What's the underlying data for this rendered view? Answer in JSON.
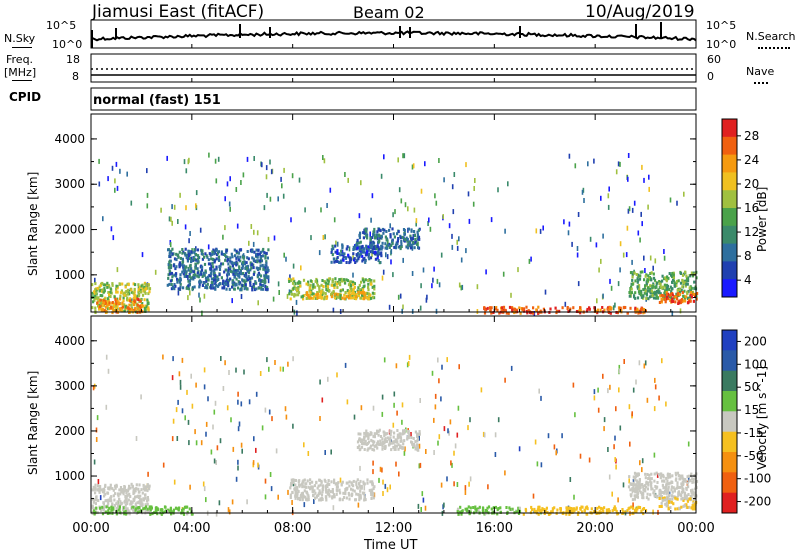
{
  "header": {
    "station": "Jiamusi East (fitACF)",
    "beam": "Beam 02",
    "date": "10/Aug/2019"
  },
  "nsky_panel": {
    "left_label": "N.Sky",
    "right_label": "N.Search",
    "left_ticks": [
      "10^5",
      "10^0"
    ],
    "right_ticks": [
      "10^5",
      "10^0"
    ]
  },
  "freq_panel": {
    "left_label_1": "Freq.",
    "left_label_2": "[MHz]",
    "right_label": "Nave",
    "left_ticks": [
      "18",
      "8"
    ],
    "right_ticks": [
      "60",
      "0"
    ]
  },
  "cpid_panel": {
    "label": "CPID",
    "mode": "normal (fast) 151"
  },
  "colors": {
    "power_scale": [
      "#1a1aff",
      "#2040b0",
      "#2e6f9e",
      "#3a8a6a",
      "#4aa24a",
      "#a0c040",
      "#f0c020",
      "#f59a10",
      "#f06010",
      "#e02020"
    ],
    "velocity_scale": [
      "#2040c0",
      "#2a5aa8",
      "#3a7a60",
      "#66c040",
      "#c8c8c0",
      "#f5c020",
      "#f59010",
      "#f06010",
      "#e02020"
    ]
  },
  "chart_data": [
    {
      "type": "heatmap",
      "title": "",
      "xlabel": "Time UT",
      "ylabel": "Slant Range [km]",
      "colorbar_label": "Power [dB]",
      "colorbar_ticks": [
        "28",
        "24",
        "20",
        "16",
        "12",
        "8",
        "4"
      ],
      "x_ticks": [
        "00:00",
        "04:00",
        "08:00",
        "12:00",
        "16:00",
        "20:00",
        "00:00"
      ],
      "y_ticks": [
        "4000",
        "3000",
        "2000",
        "1000"
      ],
      "xlim": [
        0,
        24
      ],
      "ylim": [
        180,
        4550
      ],
      "cmap_range": [
        0,
        32
      ],
      "patches": [
        {
          "t0": 0.0,
          "t1": 2.3,
          "r0": 200,
          "r1": 850,
          "val": 18
        },
        {
          "t0": 0.2,
          "t1": 2.0,
          "r0": 200,
          "r1": 500,
          "val": 25
        },
        {
          "t0": 7.8,
          "t1": 11.2,
          "r0": 500,
          "r1": 950,
          "val": 17
        },
        {
          "t0": 8.5,
          "t1": 11.0,
          "r0": 500,
          "r1": 650,
          "val": 22
        },
        {
          "t0": 10.5,
          "t1": 13.0,
          "r0": 1600,
          "r1": 2050,
          "val": 8
        },
        {
          "t0": 15.5,
          "t1": 22.0,
          "r0": 180,
          "r1": 320,
          "val": 28
        },
        {
          "t0": 21.3,
          "t1": 24.0,
          "r0": 500,
          "r1": 1100,
          "val": 14
        },
        {
          "t0": 22.5,
          "t1": 24.0,
          "r0": 400,
          "r1": 650,
          "val": 27
        },
        {
          "t0": 3.0,
          "t1": 7.0,
          "r0": 700,
          "r1": 1600,
          "val": 8
        },
        {
          "t0": 9.5,
          "t1": 11.5,
          "r0": 1300,
          "r1": 1700,
          "val": 6
        }
      ]
    },
    {
      "type": "heatmap",
      "title": "",
      "xlabel": "Time UT",
      "ylabel": "Slant Range [km]",
      "colorbar_label": "Velocity [m s^-1]",
      "colorbar_ticks": [
        "200",
        "100",
        "50",
        "15",
        "-15",
        "-50",
        "-100",
        "-200"
      ],
      "x_ticks": [
        "00:00",
        "04:00",
        "08:00",
        "12:00",
        "16:00",
        "20:00",
        "00:00"
      ],
      "y_ticks": [
        "4000",
        "3000",
        "2000",
        "1000"
      ],
      "xlim": [
        0,
        24
      ],
      "ylim": [
        180,
        4550
      ],
      "cmap_range": [
        -250,
        250
      ],
      "patches": [
        {
          "t0": 0.0,
          "t1": 2.3,
          "r0": 200,
          "r1": 850,
          "val": 0
        },
        {
          "t0": 0.0,
          "t1": 4.0,
          "r0": 180,
          "r1": 350,
          "val": 40
        },
        {
          "t0": 7.8,
          "t1": 11.2,
          "r0": 500,
          "r1": 950,
          "val": 0
        },
        {
          "t0": 10.5,
          "t1": 13.0,
          "r0": 1600,
          "r1": 2050,
          "val": 0
        },
        {
          "t0": 14.5,
          "t1": 17.0,
          "r0": 180,
          "r1": 350,
          "val": 40
        },
        {
          "t0": 17.0,
          "t1": 22.0,
          "r0": 180,
          "r1": 350,
          "val": -60
        },
        {
          "t0": 21.3,
          "t1": 24.0,
          "r0": 500,
          "r1": 1100,
          "val": 0
        },
        {
          "t0": 22.5,
          "t1": 24.0,
          "r0": 300,
          "r1": 550,
          "val": -30
        }
      ]
    }
  ]
}
